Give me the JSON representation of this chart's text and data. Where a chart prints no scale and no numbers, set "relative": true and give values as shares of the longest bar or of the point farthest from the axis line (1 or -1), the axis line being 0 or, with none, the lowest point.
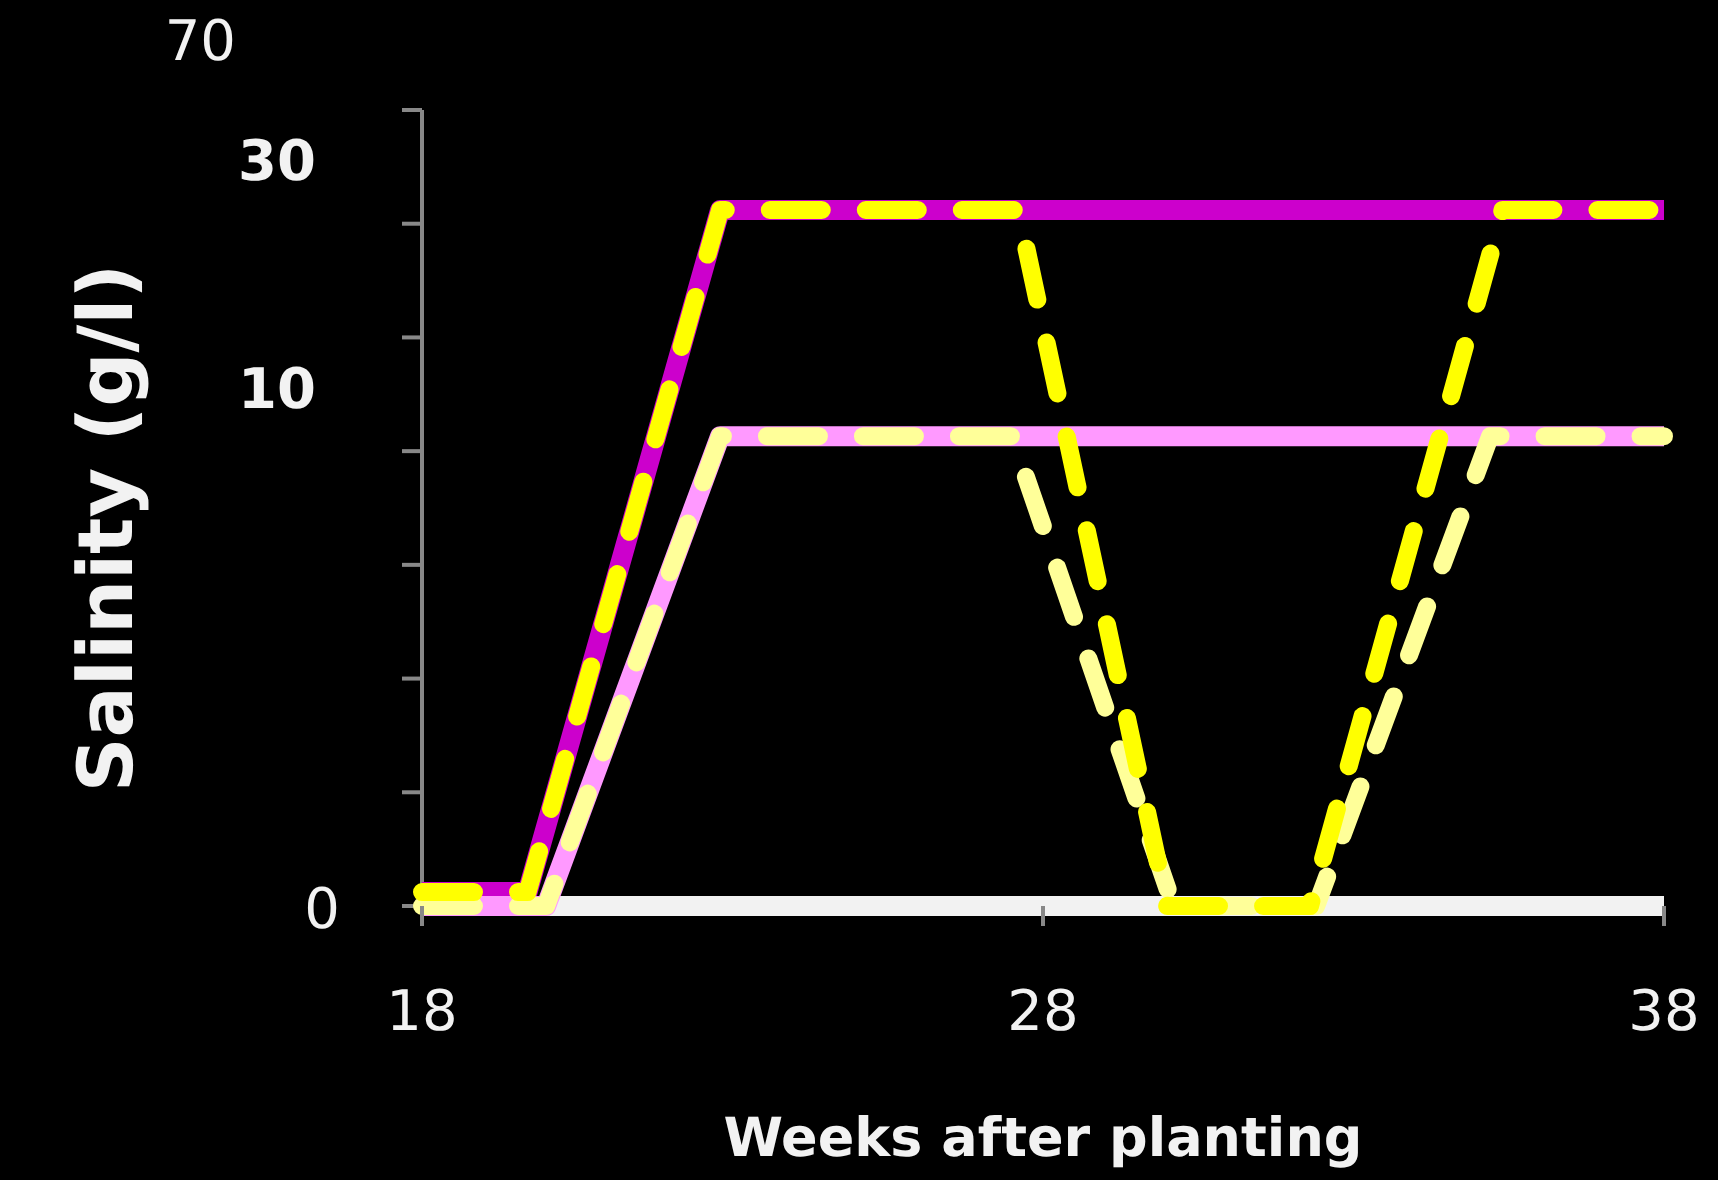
{
  "chart_data": {
    "type": "line",
    "relative": true,
    "xlabel": "Weeks after planting",
    "ylabel": "Salinity (g/l)",
    "xlim": [
      18,
      38
    ],
    "xticks": [
      18,
      28,
      38
    ],
    "grid": false,
    "annotations": [
      "70",
      "30",
      "10",
      "0"
    ],
    "series": [
      {
        "color": "#f2f2f2",
        "line_style": "solid",
        "x": [
          18,
          38
        ],
        "values": [
          0,
          0
        ]
      },
      {
        "color": "#cc00cc",
        "line_style": "solid",
        "x": [
          18,
          19.7,
          22.8,
          38
        ],
        "values": [
          0.02,
          0.02,
          1,
          1
        ]
      },
      {
        "color": "#ff99ff",
        "line_style": "solid",
        "x": [
          18,
          20,
          22.8,
          38
        ],
        "values": [
          0,
          0,
          0.675,
          0.675
        ]
      },
      {
        "color": "#ffff99",
        "line_style": "dashed",
        "x": [
          18,
          20,
          22.8,
          27.5,
          30.1,
          32.4,
          35.2,
          38
        ],
        "values": [
          0,
          0,
          0.675,
          0.675,
          0,
          0,
          0.675,
          0.675
        ]
      },
      {
        "color": "#ffff00",
        "line_style": "dashed",
        "x": [
          18,
          19.7,
          22.8,
          27.6,
          30,
          32.3,
          35.4,
          38
        ],
        "values": [
          0.02,
          0.02,
          1,
          1,
          0,
          0,
          1,
          1
        ]
      }
    ]
  }
}
